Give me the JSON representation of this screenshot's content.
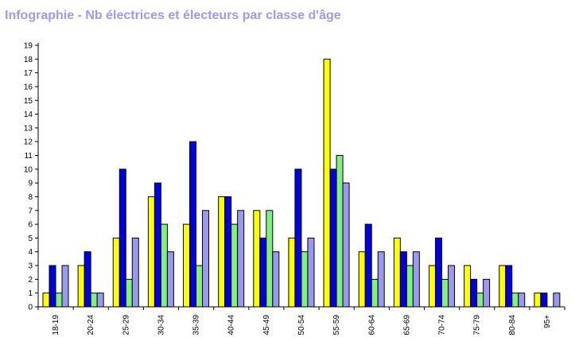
{
  "title": "Infographie - Nb électrices et électeurs par classe d'âge",
  "chart_data": {
    "type": "bar",
    "title": "Infographie - Nb électrices et électeurs par classe d'âge",
    "xlabel": "",
    "ylabel": "",
    "ylim": [
      0,
      19
    ],
    "yticks": [
      0,
      1,
      2,
      3,
      4,
      5,
      6,
      7,
      8,
      9,
      10,
      11,
      12,
      13,
      14,
      15,
      16,
      17,
      18,
      19
    ],
    "grid": false,
    "legend": "none",
    "categories": [
      "18-19",
      "20-24",
      "25-29",
      "30-34",
      "35-39",
      "40-44",
      "45-49",
      "50-54",
      "55-59",
      "60-64",
      "65-69",
      "70-74",
      "75-79",
      "80-84",
      "95+"
    ],
    "series": [
      {
        "color": "#ffff00",
        "values": [
          1,
          3,
          5,
          8,
          6,
          8,
          7,
          5,
          18,
          4,
          5,
          3,
          3,
          3,
          1
        ]
      },
      {
        "color": "#0000e0",
        "values": [
          3,
          4,
          10,
          9,
          12,
          8,
          5,
          10,
          10,
          6,
          4,
          5,
          2,
          3,
          1
        ]
      },
      {
        "color": "#80f080",
        "values": [
          1,
          1,
          2,
          6,
          3,
          6,
          7,
          4,
          11,
          2,
          3,
          2,
          1,
          1,
          0
        ]
      },
      {
        "color": "#9999f0",
        "values": [
          3,
          1,
          5,
          4,
          7,
          7,
          4,
          5,
          9,
          4,
          4,
          3,
          2,
          1,
          1
        ]
      }
    ]
  }
}
